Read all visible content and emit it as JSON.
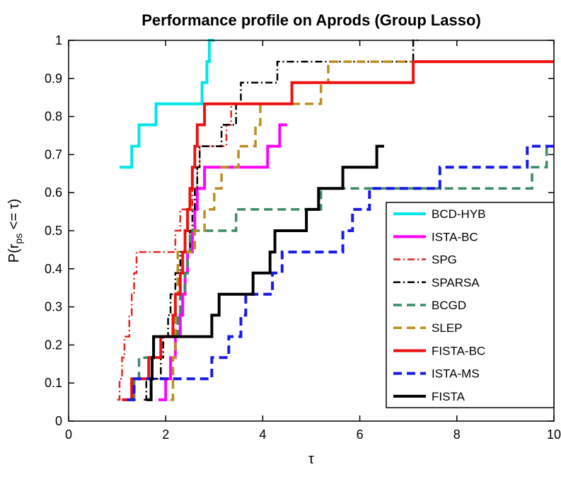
{
  "axes": {
    "ylabel_parts": {
      "pre": "P(r",
      "sub": "ps",
      "post": " <= τ)"
    }
  },
  "chart_data": {
    "type": "line",
    "step": "post",
    "title": "Performance profile on Aprods (Group Lasso)",
    "xlabel": "τ",
    "ylabel": "P(r_ps <= τ)",
    "xlim": [
      0,
      10
    ],
    "ylim": [
      0,
      1
    ],
    "grid": false,
    "legend_position": "lower right",
    "xticks": [
      0,
      2,
      4,
      6,
      8,
      10
    ],
    "yticks": [
      0,
      0.1,
      0.2,
      0.3,
      0.4,
      0.5,
      0.6,
      0.7,
      0.8,
      0.9,
      1
    ],
    "series": [
      {
        "name": "BCD-HYB",
        "color": "#00E6E6",
        "style": "solid",
        "width": 4,
        "points": [
          [
            1.05,
            0.667
          ],
          [
            1.3,
            0.722
          ],
          [
            1.45,
            0.778
          ],
          [
            1.8,
            0.833
          ],
          [
            2.75,
            0.889
          ],
          [
            2.85,
            0.944
          ],
          [
            2.9,
            1.0
          ],
          [
            3.0,
            1.0
          ]
        ]
      },
      {
        "name": "ISTA-BC",
        "color": "#FF00FF",
        "style": "solid",
        "width": 4,
        "points": [
          [
            1.85,
            0.056
          ],
          [
            2.0,
            0.111
          ],
          [
            2.1,
            0.167
          ],
          [
            2.2,
            0.222
          ],
          [
            2.3,
            0.278
          ],
          [
            2.35,
            0.333
          ],
          [
            2.4,
            0.389
          ],
          [
            2.45,
            0.444
          ],
          [
            2.55,
            0.5
          ],
          [
            2.6,
            0.556
          ],
          [
            2.65,
            0.611
          ],
          [
            2.8,
            0.667
          ],
          [
            4.1,
            0.722
          ],
          [
            4.35,
            0.778
          ],
          [
            4.5,
            0.778
          ]
        ]
      },
      {
        "name": "SPG",
        "color": "#E8231E",
        "style": "dashdot",
        "width": 2.5,
        "points": [
          [
            1.0,
            0.056
          ],
          [
            1.05,
            0.111
          ],
          [
            1.1,
            0.167
          ],
          [
            1.15,
            0.222
          ],
          [
            1.25,
            0.278
          ],
          [
            1.3,
            0.333
          ],
          [
            1.35,
            0.389
          ],
          [
            1.4,
            0.444
          ],
          [
            2.2,
            0.5
          ],
          [
            2.3,
            0.556
          ],
          [
            2.55,
            0.611
          ],
          [
            2.65,
            0.667
          ],
          [
            2.7,
            0.722
          ],
          [
            3.25,
            0.778
          ],
          [
            3.35,
            0.833
          ],
          [
            3.45,
            0.833
          ]
        ]
      },
      {
        "name": "SPARSA",
        "color": "#000000",
        "style": "dashdot",
        "width": 2.5,
        "points": [
          [
            1.55,
            0.056
          ],
          [
            1.6,
            0.111
          ],
          [
            1.9,
            0.167
          ],
          [
            1.95,
            0.222
          ],
          [
            2.05,
            0.278
          ],
          [
            2.1,
            0.333
          ],
          [
            2.2,
            0.389
          ],
          [
            2.3,
            0.444
          ],
          [
            2.5,
            0.5
          ],
          [
            2.55,
            0.556
          ],
          [
            2.6,
            0.611
          ],
          [
            2.65,
            0.667
          ],
          [
            2.7,
            0.722
          ],
          [
            3.15,
            0.778
          ],
          [
            3.45,
            0.833
          ],
          [
            3.55,
            0.889
          ],
          [
            4.3,
            0.944
          ],
          [
            7.1,
            1.0
          ],
          [
            7.2,
            1.0
          ]
        ]
      },
      {
        "name": "BCGD",
        "color": "#3C8A66",
        "style": "dash",
        "width": 3.5,
        "points": [
          [
            1.3,
            0.056
          ],
          [
            1.35,
            0.111
          ],
          [
            1.45,
            0.167
          ],
          [
            1.9,
            0.222
          ],
          [
            2.25,
            0.278
          ],
          [
            2.3,
            0.333
          ],
          [
            2.4,
            0.389
          ],
          [
            2.45,
            0.444
          ],
          [
            2.5,
            0.5
          ],
          [
            3.45,
            0.556
          ],
          [
            5.2,
            0.611
          ],
          [
            9.55,
            0.667
          ],
          [
            9.85,
            0.722
          ],
          [
            10,
            0.722
          ]
        ]
      },
      {
        "name": "SLEP",
        "color": "#BC8F1E",
        "style": "dash",
        "width": 3.5,
        "points": [
          [
            2.1,
            0.056
          ],
          [
            2.15,
            0.111
          ],
          [
            2.15,
            0.167
          ],
          [
            2.2,
            0.222
          ],
          [
            2.2,
            0.278
          ],
          [
            2.2,
            0.333
          ],
          [
            2.25,
            0.389
          ],
          [
            2.25,
            0.444
          ],
          [
            2.6,
            0.5
          ],
          [
            2.8,
            0.556
          ],
          [
            3.0,
            0.611
          ],
          [
            3.15,
            0.667
          ],
          [
            3.5,
            0.722
          ],
          [
            3.85,
            0.778
          ],
          [
            3.95,
            0.833
          ],
          [
            5.2,
            0.889
          ],
          [
            5.35,
            0.944
          ],
          [
            10,
            0.944
          ]
        ]
      },
      {
        "name": "FISTA-BC",
        "color": "#EE1111",
        "style": "solid",
        "width": 4,
        "points": [
          [
            1.1,
            0.056
          ],
          [
            1.3,
            0.111
          ],
          [
            1.65,
            0.167
          ],
          [
            1.9,
            0.222
          ],
          [
            2.15,
            0.278
          ],
          [
            2.2,
            0.333
          ],
          [
            2.3,
            0.389
          ],
          [
            2.35,
            0.444
          ],
          [
            2.4,
            0.5
          ],
          [
            2.45,
            0.556
          ],
          [
            2.5,
            0.611
          ],
          [
            2.55,
            0.667
          ],
          [
            2.6,
            0.722
          ],
          [
            2.65,
            0.778
          ],
          [
            2.8,
            0.833
          ],
          [
            4.6,
            0.889
          ],
          [
            7.1,
            0.944
          ],
          [
            10,
            0.944
          ]
        ]
      },
      {
        "name": "ISTA-MS",
        "color": "#1A1AE6",
        "style": "dash",
        "width": 4,
        "points": [
          [
            1.2,
            0.056
          ],
          [
            1.35,
            0.111
          ],
          [
            2.95,
            0.167
          ],
          [
            3.3,
            0.222
          ],
          [
            3.55,
            0.278
          ],
          [
            3.65,
            0.333
          ],
          [
            4.2,
            0.389
          ],
          [
            4.4,
            0.444
          ],
          [
            5.65,
            0.5
          ],
          [
            5.85,
            0.556
          ],
          [
            6.2,
            0.611
          ],
          [
            7.65,
            0.667
          ],
          [
            9.45,
            0.722
          ],
          [
            10,
            0.722
          ]
        ]
      },
      {
        "name": "FISTA",
        "color": "#000000",
        "style": "solid",
        "width": 4,
        "points": [
          [
            1.6,
            0.056
          ],
          [
            1.7,
            0.111
          ],
          [
            1.72,
            0.167
          ],
          [
            1.75,
            0.222
          ],
          [
            2.95,
            0.278
          ],
          [
            3.1,
            0.333
          ],
          [
            3.8,
            0.389
          ],
          [
            4.15,
            0.444
          ],
          [
            4.25,
            0.5
          ],
          [
            4.9,
            0.556
          ],
          [
            5.15,
            0.611
          ],
          [
            5.65,
            0.667
          ],
          [
            6.35,
            0.722
          ],
          [
            6.5,
            0.722
          ]
        ]
      }
    ]
  }
}
